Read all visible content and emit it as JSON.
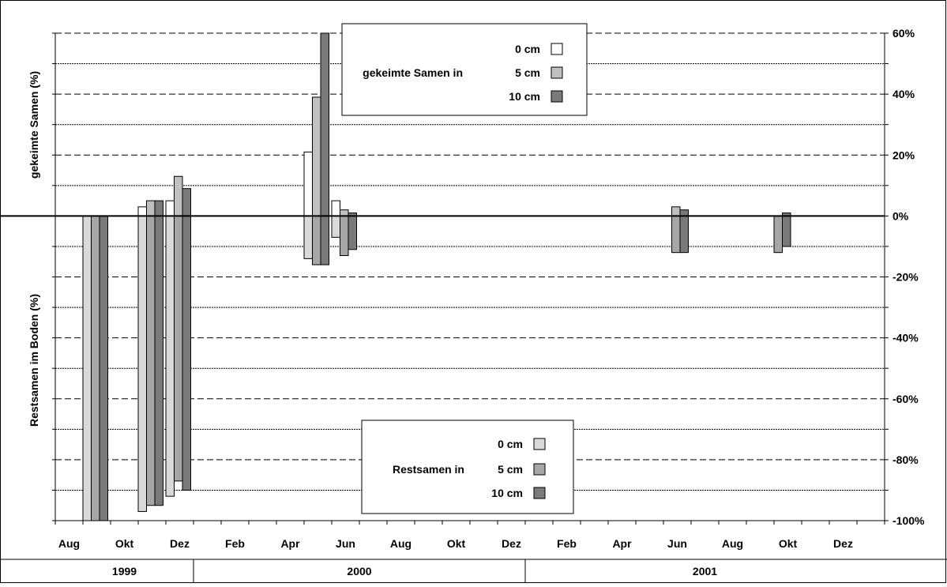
{
  "chart_data": {
    "type": "bar",
    "left_axis_top_label": "gekeimte Samen (%)",
    "left_axis_bottom_label": "Restsamen im Boden (%)",
    "y_ticks": [
      "60%",
      "40%",
      "20%",
      "0%",
      "-20%",
      "-40%",
      "-60%",
      "-80%",
      "-100%"
    ],
    "ylim": [
      -100,
      60
    ],
    "x_month_labels": [
      "Aug",
      "Okt",
      "Dez",
      "Feb",
      "Apr",
      "Jun",
      "Aug",
      "Okt",
      "Dez",
      "Feb",
      "Apr",
      "Jun",
      "Aug",
      "Okt",
      "Dez"
    ],
    "x_year_labels": [
      "1999",
      "2000",
      "2001"
    ],
    "gridlines": "dashed at every 10%",
    "legend_germinated": {
      "title": "gekeimte Samen in",
      "entries": [
        {
          "label": "0 cm",
          "color": "#ffffff"
        },
        {
          "label": "5 cm",
          "color": "#c0c0c0"
        },
        {
          "label": "10 cm",
          "color": "#7a7a7a"
        }
      ]
    },
    "legend_remaining": {
      "title": "Restsamen in",
      "entries": [
        {
          "label": "0 cm",
          "color": "#d9d9d9"
        },
        {
          "label": "5 cm",
          "color": "#a6a6a6"
        },
        {
          "label": "10 cm",
          "color": "#7a7a7a"
        }
      ]
    },
    "germinated_series": [
      {
        "depth": "0 cm",
        "color": "#ffffff",
        "points": [
          {
            "month": 3.0,
            "value": 3
          },
          {
            "month": 4.0,
            "value": 5
          },
          {
            "month": 9.0,
            "value": 21
          },
          {
            "month": 10.0,
            "value": 5
          }
        ]
      },
      {
        "depth": "5 cm",
        "color": "#c0c0c0",
        "points": [
          {
            "month": 3.3,
            "value": 5
          },
          {
            "month": 4.3,
            "value": 13
          },
          {
            "month": 9.3,
            "value": 39
          },
          {
            "month": 10.3,
            "value": 2
          },
          {
            "month": 22.3,
            "value": 3
          }
        ]
      },
      {
        "depth": "10 cm",
        "color": "#7a7a7a",
        "points": [
          {
            "month": 3.6,
            "value": 5
          },
          {
            "month": 4.6,
            "value": 9
          },
          {
            "month": 9.6,
            "value": 60
          },
          {
            "month": 10.6,
            "value": 1
          },
          {
            "month": 22.6,
            "value": 2
          },
          {
            "month": 26.3,
            "value": 1
          }
        ]
      }
    ],
    "remaining_series": [
      {
        "depth": "0 cm",
        "color": "#d9d9d9",
        "points": [
          {
            "month": 1.0,
            "value": -100
          },
          {
            "month": 3.0,
            "value": -97
          },
          {
            "month": 4.0,
            "value": -92
          },
          {
            "month": 9.0,
            "value": -14
          },
          {
            "month": 10.0,
            "value": -7
          }
        ]
      },
      {
        "depth": "5 cm",
        "color": "#a6a6a6",
        "points": [
          {
            "month": 1.3,
            "value": -100
          },
          {
            "month": 3.3,
            "value": -95
          },
          {
            "month": 4.3,
            "value": -87
          },
          {
            "month": 9.3,
            "value": -16
          },
          {
            "month": 10.3,
            "value": -13
          },
          {
            "month": 22.3,
            "value": -12
          },
          {
            "month": 26.0,
            "value": -12
          }
        ]
      },
      {
        "depth": "10 cm",
        "color": "#7a7a7a",
        "points": [
          {
            "month": 1.6,
            "value": -100
          },
          {
            "month": 3.6,
            "value": -95
          },
          {
            "month": 4.6,
            "value": -90
          },
          {
            "month": 9.6,
            "value": -16
          },
          {
            "month": 10.6,
            "value": -11
          },
          {
            "month": 22.6,
            "value": -12
          },
          {
            "month": 26.3,
            "value": -10
          }
        ]
      }
    ]
  }
}
